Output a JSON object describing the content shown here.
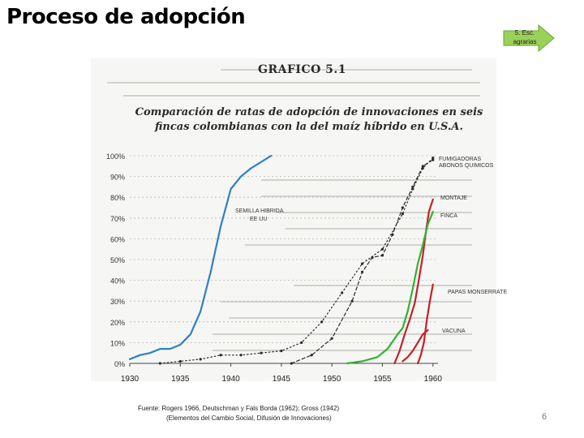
{
  "slide": {
    "title": "Proceso de adopción",
    "nav_label": "5. Esc. agrarias",
    "source_line1": "Fuente: Rogers 1966, Deutschman y Fals Borda (1962); Gross (1942)",
    "source_line2": "(Elementos del Cambio Social, Difusión de Innovaciones)",
    "page_number": "6"
  },
  "colors": {
    "arrow_fill": "#9bd158",
    "arrow_stroke": "#6aa434",
    "hybrid": "#2f7fc4",
    "red": "#c4202a",
    "green": "#33b233",
    "black": "#2a2a2a"
  },
  "chart_data": {
    "type": "line",
    "title": "GRAFICO 5.1",
    "subtitle": "Comparación de ratas de adopción de innovaciones en seis fincas colombianas con la del maíz híbrido en U.S.A.",
    "x_ticks": [
      "1930",
      "1935",
      "1940",
      "1945",
      "1950",
      "1955",
      "1960"
    ],
    "y_ticks": [
      "0%",
      "10%",
      "20%",
      "30%",
      "40%",
      "50%",
      "60%",
      "70%",
      "80%",
      "90%",
      "100%"
    ],
    "xlim": [
      1930,
      1960.5
    ],
    "ylim": [
      0,
      100
    ],
    "series": [
      {
        "name": "SEMILLA HIBRIDA EE UU",
        "color": "#2f7fc4",
        "style": "solid",
        "points": [
          [
            1930,
            2
          ],
          [
            1931,
            4
          ],
          [
            1932,
            5
          ],
          [
            1933,
            7
          ],
          [
            1934,
            7
          ],
          [
            1935,
            9
          ],
          [
            1936,
            14
          ],
          [
            1937,
            25
          ],
          [
            1938,
            44
          ],
          [
            1939,
            66
          ],
          [
            1940,
            84
          ],
          [
            1941,
            90
          ],
          [
            1942,
            94
          ],
          [
            1943,
            97
          ],
          [
            1944,
            100
          ]
        ]
      },
      {
        "name": "FUMIGADORAS ABONOS QUIMICOS",
        "color": "#2a2a2a",
        "style": "dotted",
        "points": [
          [
            1933,
            0
          ],
          [
            1935,
            1
          ],
          [
            1937,
            2
          ],
          [
            1939,
            4
          ],
          [
            1941,
            4
          ],
          [
            1943,
            5
          ],
          [
            1945,
            6
          ],
          [
            1947,
            10
          ],
          [
            1949,
            20
          ],
          [
            1951,
            34
          ],
          [
            1953,
            48
          ],
          [
            1955,
            55
          ],
          [
            1957,
            72
          ],
          [
            1958,
            84
          ],
          [
            1959,
            94
          ],
          [
            1960,
            99
          ]
        ]
      },
      {
        "name": "ABONOS QUIMICOS",
        "color": "#2a2a2a",
        "style": "dashed",
        "points": [
          [
            1946,
            0
          ],
          [
            1948,
            4
          ],
          [
            1950,
            12
          ],
          [
            1952,
            30
          ],
          [
            1953,
            44
          ],
          [
            1954,
            51
          ],
          [
            1955,
            52
          ],
          [
            1956,
            62
          ],
          [
            1957,
            75
          ],
          [
            1958,
            85
          ],
          [
            1959,
            95
          ],
          [
            1960,
            98
          ]
        ]
      },
      {
        "name": "MONTAJE",
        "color": "#c4202a",
        "style": "solid",
        "points": [
          [
            1956.2,
            0
          ],
          [
            1956.7,
            6
          ],
          [
            1957.2,
            14
          ],
          [
            1957.7,
            21
          ],
          [
            1958.2,
            29
          ],
          [
            1958.6,
            40
          ],
          [
            1959.0,
            52
          ],
          [
            1959.3,
            63
          ],
          [
            1959.6,
            73
          ],
          [
            1960,
            79
          ]
        ]
      },
      {
        "name": "FINCA",
        "color": "#33b233",
        "style": "solid",
        "points": [
          [
            1951.5,
            0
          ],
          [
            1953,
            1
          ],
          [
            1954.5,
            3
          ],
          [
            1955.5,
            7
          ],
          [
            1956.5,
            14
          ],
          [
            1957,
            17
          ],
          [
            1957.5,
            25
          ],
          [
            1958,
            36
          ],
          [
            1958.5,
            48
          ],
          [
            1959,
            57
          ],
          [
            1959.5,
            67
          ],
          [
            1960,
            73
          ]
        ]
      },
      {
        "name": "PAPAS MONSERRATE",
        "color": "#c4202a",
        "style": "solid",
        "points": [
          [
            1958.5,
            0
          ],
          [
            1958.8,
            4
          ],
          [
            1959.1,
            10
          ],
          [
            1959.4,
            21
          ],
          [
            1959.7,
            30
          ],
          [
            1960,
            38
          ]
        ]
      },
      {
        "name": "VACUNA",
        "color": "#c4202a",
        "style": "solid",
        "points": [
          [
            1957,
            1
          ],
          [
            1957.5,
            3
          ],
          [
            1958,
            6
          ],
          [
            1958.5,
            10
          ],
          [
            1959,
            14
          ],
          [
            1959.5,
            16
          ]
        ]
      }
    ],
    "labels": [
      {
        "text": "SEMILLA HIBRIDA",
        "series": 0
      },
      {
        "text": "EE UU",
        "series": 0
      },
      {
        "text": "FUMIGADORAS",
        "series": 1
      },
      {
        "text": "ABONOS QUIMICOS",
        "series": 2
      },
      {
        "text": "MONTAJE",
        "series": 3
      },
      {
        "text": "FINCA",
        "series": 4
      },
      {
        "text": "PAPAS MONSERRATE",
        "series": 5
      },
      {
        "text": "VACUNA",
        "series": 6
      }
    ]
  }
}
